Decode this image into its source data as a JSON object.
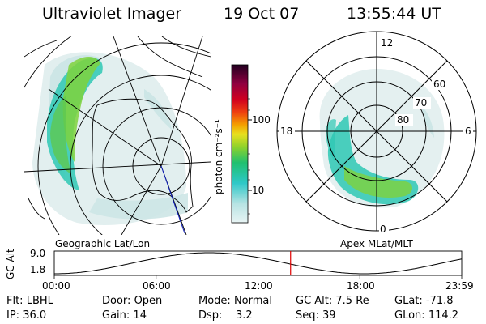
{
  "header": {
    "instrument": "Ultraviolet Imager",
    "date": "19 Oct 07",
    "time": "13:55:44 UT"
  },
  "left_panel": {
    "label": "Geographic Lat/Lon"
  },
  "right_panel": {
    "label": "Apex MLat/MLT",
    "mlt_labels": {
      "top": "12",
      "right": "6",
      "bottom": "0",
      "left": "18"
    },
    "lat_labels": [
      "60",
      "70",
      "80"
    ]
  },
  "colorbar": {
    "unit_label": "photon cm⁻²s⁻¹",
    "ticks": [
      "100",
      "10"
    ]
  },
  "altitude_plot": {
    "ylabel": "GC Alt",
    "y_ticks": [
      "9.0",
      "1.8"
    ],
    "x_ticks": [
      "00:00",
      "06:00",
      "12:00",
      "18:00",
      "23:59"
    ],
    "current_time_fraction": 0.58,
    "marker_color": "#e00000"
  },
  "info": {
    "row1": [
      {
        "label": "Flt:",
        "value": "LBHL"
      },
      {
        "label": "Door:",
        "value": "Open"
      },
      {
        "label": "Mode:",
        "value": "Normal"
      },
      {
        "label": "GC Alt:",
        "value": "7.5 Re"
      },
      {
        "label": "GLat:",
        "value": "-71.8"
      }
    ],
    "row2": [
      {
        "label": "IP:",
        "value": "36.0"
      },
      {
        "label": "Gain:",
        "value": "14"
      },
      {
        "label": "Dsp:",
        "value": "3.2"
      },
      {
        "label": "Seq:",
        "value": "39"
      },
      {
        "label": "GLon:",
        "value": "114.2"
      }
    ]
  },
  "colors": {
    "aurora_low": "#cde6e6",
    "aurora_mid": "#2ec8b4",
    "aurora_high": "#7fd23c"
  }
}
